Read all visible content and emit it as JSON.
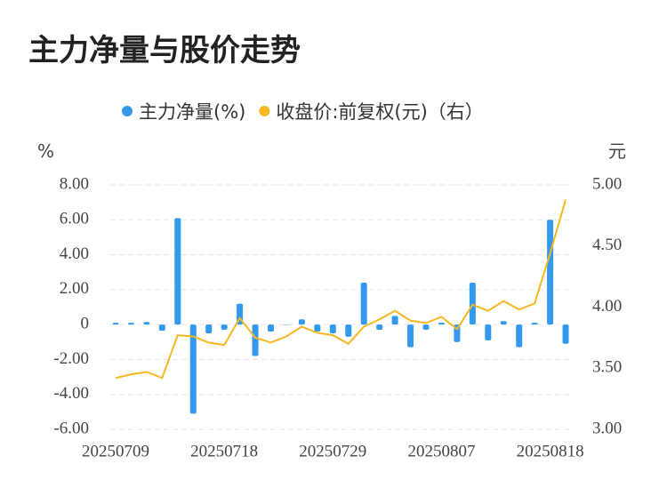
{
  "chart_data": {
    "type": "bar-line",
    "title": "主力净量与股价走势",
    "y_label": "%",
    "y2_label": "元",
    "categories": [
      "20250709",
      null,
      null,
      null,
      null,
      null,
      null,
      "20250718",
      null,
      null,
      null,
      null,
      null,
      null,
      "20250729",
      null,
      null,
      null,
      null,
      null,
      null,
      "20250807",
      null,
      null,
      null,
      null,
      null,
      null,
      "20250818",
      null
    ],
    "series": [
      {
        "name": "主力净量(%)",
        "type": "bar",
        "color": "#3399ee",
        "values": [
          0.1,
          0.1,
          0.15,
          -0.35,
          6.1,
          -5.1,
          -0.5,
          -0.3,
          1.2,
          -1.8,
          -0.4,
          0,
          0.3,
          -0.4,
          -0.5,
          -0.7,
          2.4,
          -0.3,
          0.5,
          -1.3,
          -0.3,
          0.1,
          -1.0,
          2.4,
          -0.9,
          0.2,
          -1.3,
          0.1,
          6.0,
          -1.1
        ]
      },
      {
        "name": "收盘价:前复权(元)（右）",
        "type": "line",
        "axis": "y2",
        "color": "#f5b820",
        "values": [
          3.42,
          3.45,
          3.47,
          3.42,
          3.77,
          3.76,
          3.71,
          3.69,
          3.91,
          3.75,
          3.71,
          3.76,
          3.84,
          3.79,
          3.77,
          3.7,
          3.84,
          3.9,
          3.97,
          3.89,
          3.87,
          3.92,
          3.82,
          4.02,
          3.97,
          4.05,
          3.98,
          4.03,
          4.44,
          4.88
        ]
      }
    ],
    "ylim": [
      -6,
      8
    ],
    "yticks": [
      {
        "value": -6,
        "label": "-6.00"
      },
      {
        "value": -4,
        "label": "-4.00"
      },
      {
        "value": -2,
        "label": "-2.00"
      },
      0,
      {
        "value": 2,
        "label": "2.00"
      },
      {
        "value": 4,
        "label": "4.00"
      },
      {
        "value": 6,
        "label": "6.00"
      },
      {
        "value": 8,
        "label": "8.00"
      }
    ],
    "y2lim": [
      3,
      5
    ],
    "y2ticks": [
      {
        "value": 3,
        "label": "3.00"
      },
      {
        "value": 3.5,
        "label": "3.50"
      },
      {
        "value": 4,
        "label": "4.00"
      },
      {
        "value": 4.5,
        "label": "4.50"
      },
      {
        "value": 5,
        "label": "5.00"
      }
    ],
    "grid": true,
    "legend": "top"
  }
}
